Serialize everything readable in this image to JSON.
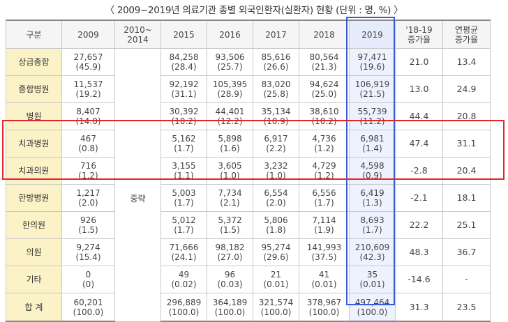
{
  "title": "〈 2009~2019년 의료기관 종별 외국인환자(실환자) 현황 (단위 : 명, %) 〉",
  "headers": {
    "category": "구분",
    "y2009": "2009",
    "y2010_2014_line1": "2010~",
    "y2010_2014_line2": "2014",
    "y2015": "2015",
    "y2016": "2016",
    "y2017": "2017",
    "y2018": "2018",
    "y2019": "2019",
    "inc_line1": "'18-19",
    "inc_line2": "증가율",
    "avg_line1": "연평균",
    "avg_line2": "증가율"
  },
  "omitted_label": "중략",
  "rows": [
    {
      "name": "상급종합",
      "v2009": "27,657",
      "p2009": "(45.9)",
      "v2015": "84,258",
      "p2015": "(28.4)",
      "v2016": "93,506",
      "p2016": "(25.7)",
      "v2017": "85,616",
      "p2017": "(26.6)",
      "v2018": "80,564",
      "p2018": "(21.3)",
      "v2019": "97,471",
      "p2019": "(19.6)",
      "inc": "21.0",
      "avg": "13.4"
    },
    {
      "name": "종합병원",
      "v2009": "11,537",
      "p2009": "(19.2)",
      "v2015": "92,192",
      "p2015": "(31.1)",
      "v2016": "105,395",
      "p2016": "(28.9)",
      "v2017": "83,020",
      "p2017": "(25.8)",
      "v2018": "94,624",
      "p2018": "(25.0)",
      "v2019": "106,919",
      "p2019": "(21.5)",
      "inc": "13.0",
      "avg": "24.9"
    },
    {
      "name": "병원",
      "v2009": "8,407",
      "p2009": "(14.0)",
      "v2015": "30,392",
      "p2015": "(10.2)",
      "v2016": "44,401",
      "p2016": "(12.2)",
      "v2017": "35,134",
      "p2017": "(10.9)",
      "v2018": "38,610",
      "p2018": "(10.2)",
      "v2019": "55,739",
      "p2019": "(11.2)",
      "inc": "44.4",
      "avg": "20.8"
    },
    {
      "name": "치과병원",
      "v2009": "467",
      "p2009": "(0.8)",
      "v2015": "5,162",
      "p2015": "(1.7)",
      "v2016": "5,898",
      "p2016": "(1.6)",
      "v2017": "6,917",
      "p2017": "(2.2)",
      "v2018": "4,736",
      "p2018": "(1.2)",
      "v2019": "6,981",
      "p2019": "(1.4)",
      "inc": "47.4",
      "avg": "31.1"
    },
    {
      "name": "치과의원",
      "v2009": "716",
      "p2009": "(1.2)",
      "v2015": "3,155",
      "p2015": "(1.1)",
      "v2016": "3,605",
      "p2016": "(1.0)",
      "v2017": "3,232",
      "p2017": "(1.0)",
      "v2018": "4,729",
      "p2018": "(1.2)",
      "v2019": "4,598",
      "p2019": "(0.9)",
      "inc": "-2.8",
      "avg": "20.4"
    },
    {
      "name": "한방병원",
      "v2009": "1,217",
      "p2009": "(2.0)",
      "v2015": "5,003",
      "p2015": "(1.7)",
      "v2016": "7,734",
      "p2016": "(2.1)",
      "v2017": "6,554",
      "p2017": "(2.0)",
      "v2018": "6,556",
      "p2018": "(1.7)",
      "v2019": "6,419",
      "p2019": "(1.3)",
      "inc": "-2.1",
      "avg": "18.1"
    },
    {
      "name": "한의원",
      "v2009": "926",
      "p2009": "(1.5)",
      "v2015": "5,012",
      "p2015": "(1.7)",
      "v2016": "5,372",
      "p2016": "(1.5)",
      "v2017": "5,806",
      "p2017": "(1.8)",
      "v2018": "7,114",
      "p2018": "(1.9)",
      "v2019": "8,693",
      "p2019": "(1.7)",
      "inc": "22.2",
      "avg": "25.1"
    },
    {
      "name": "의원",
      "v2009": "9,274",
      "p2009": "(15.4)",
      "v2015": "71,666",
      "p2015": "(24.1)",
      "v2016": "98,182",
      "p2016": "(27.0)",
      "v2017": "95,274",
      "p2017": "(29.6)",
      "v2018": "141,993",
      "p2018": "(37.5)",
      "v2019": "210,609",
      "p2019": "(42.3)",
      "inc": "48.3",
      "avg": "36.7"
    },
    {
      "name": "기타",
      "v2009": "0",
      "p2009": "(0)",
      "v2015": "49",
      "p2015": "(0.02)",
      "v2016": "96",
      "p2016": "(0.03)",
      "v2017": "21",
      "p2017": "(0.01)",
      "v2018": "41",
      "p2018": "(0.01)",
      "v2019": "35",
      "p2019": "(0.01)",
      "inc": "-14.6",
      "avg": "-"
    },
    {
      "name": "합 계",
      "v2009": "60,201",
      "p2009": "(100.0)",
      "v2015": "296,889",
      "p2015": "(100.0)",
      "v2016": "364,189",
      "p2016": "(100.0)",
      "v2017": "321,574",
      "p2017": "(100.0)",
      "v2018": "378,967",
      "p2018": "(100.0)",
      "v2019": "497,464",
      "p2019": "(100.0)",
      "inc": "31.3",
      "avg": "23.5"
    }
  ],
  "colors": {
    "category_bg": "#fbf3c7",
    "highlight_2019": "#3a5bd9",
    "highlight_dental": "#e0262b"
  }
}
